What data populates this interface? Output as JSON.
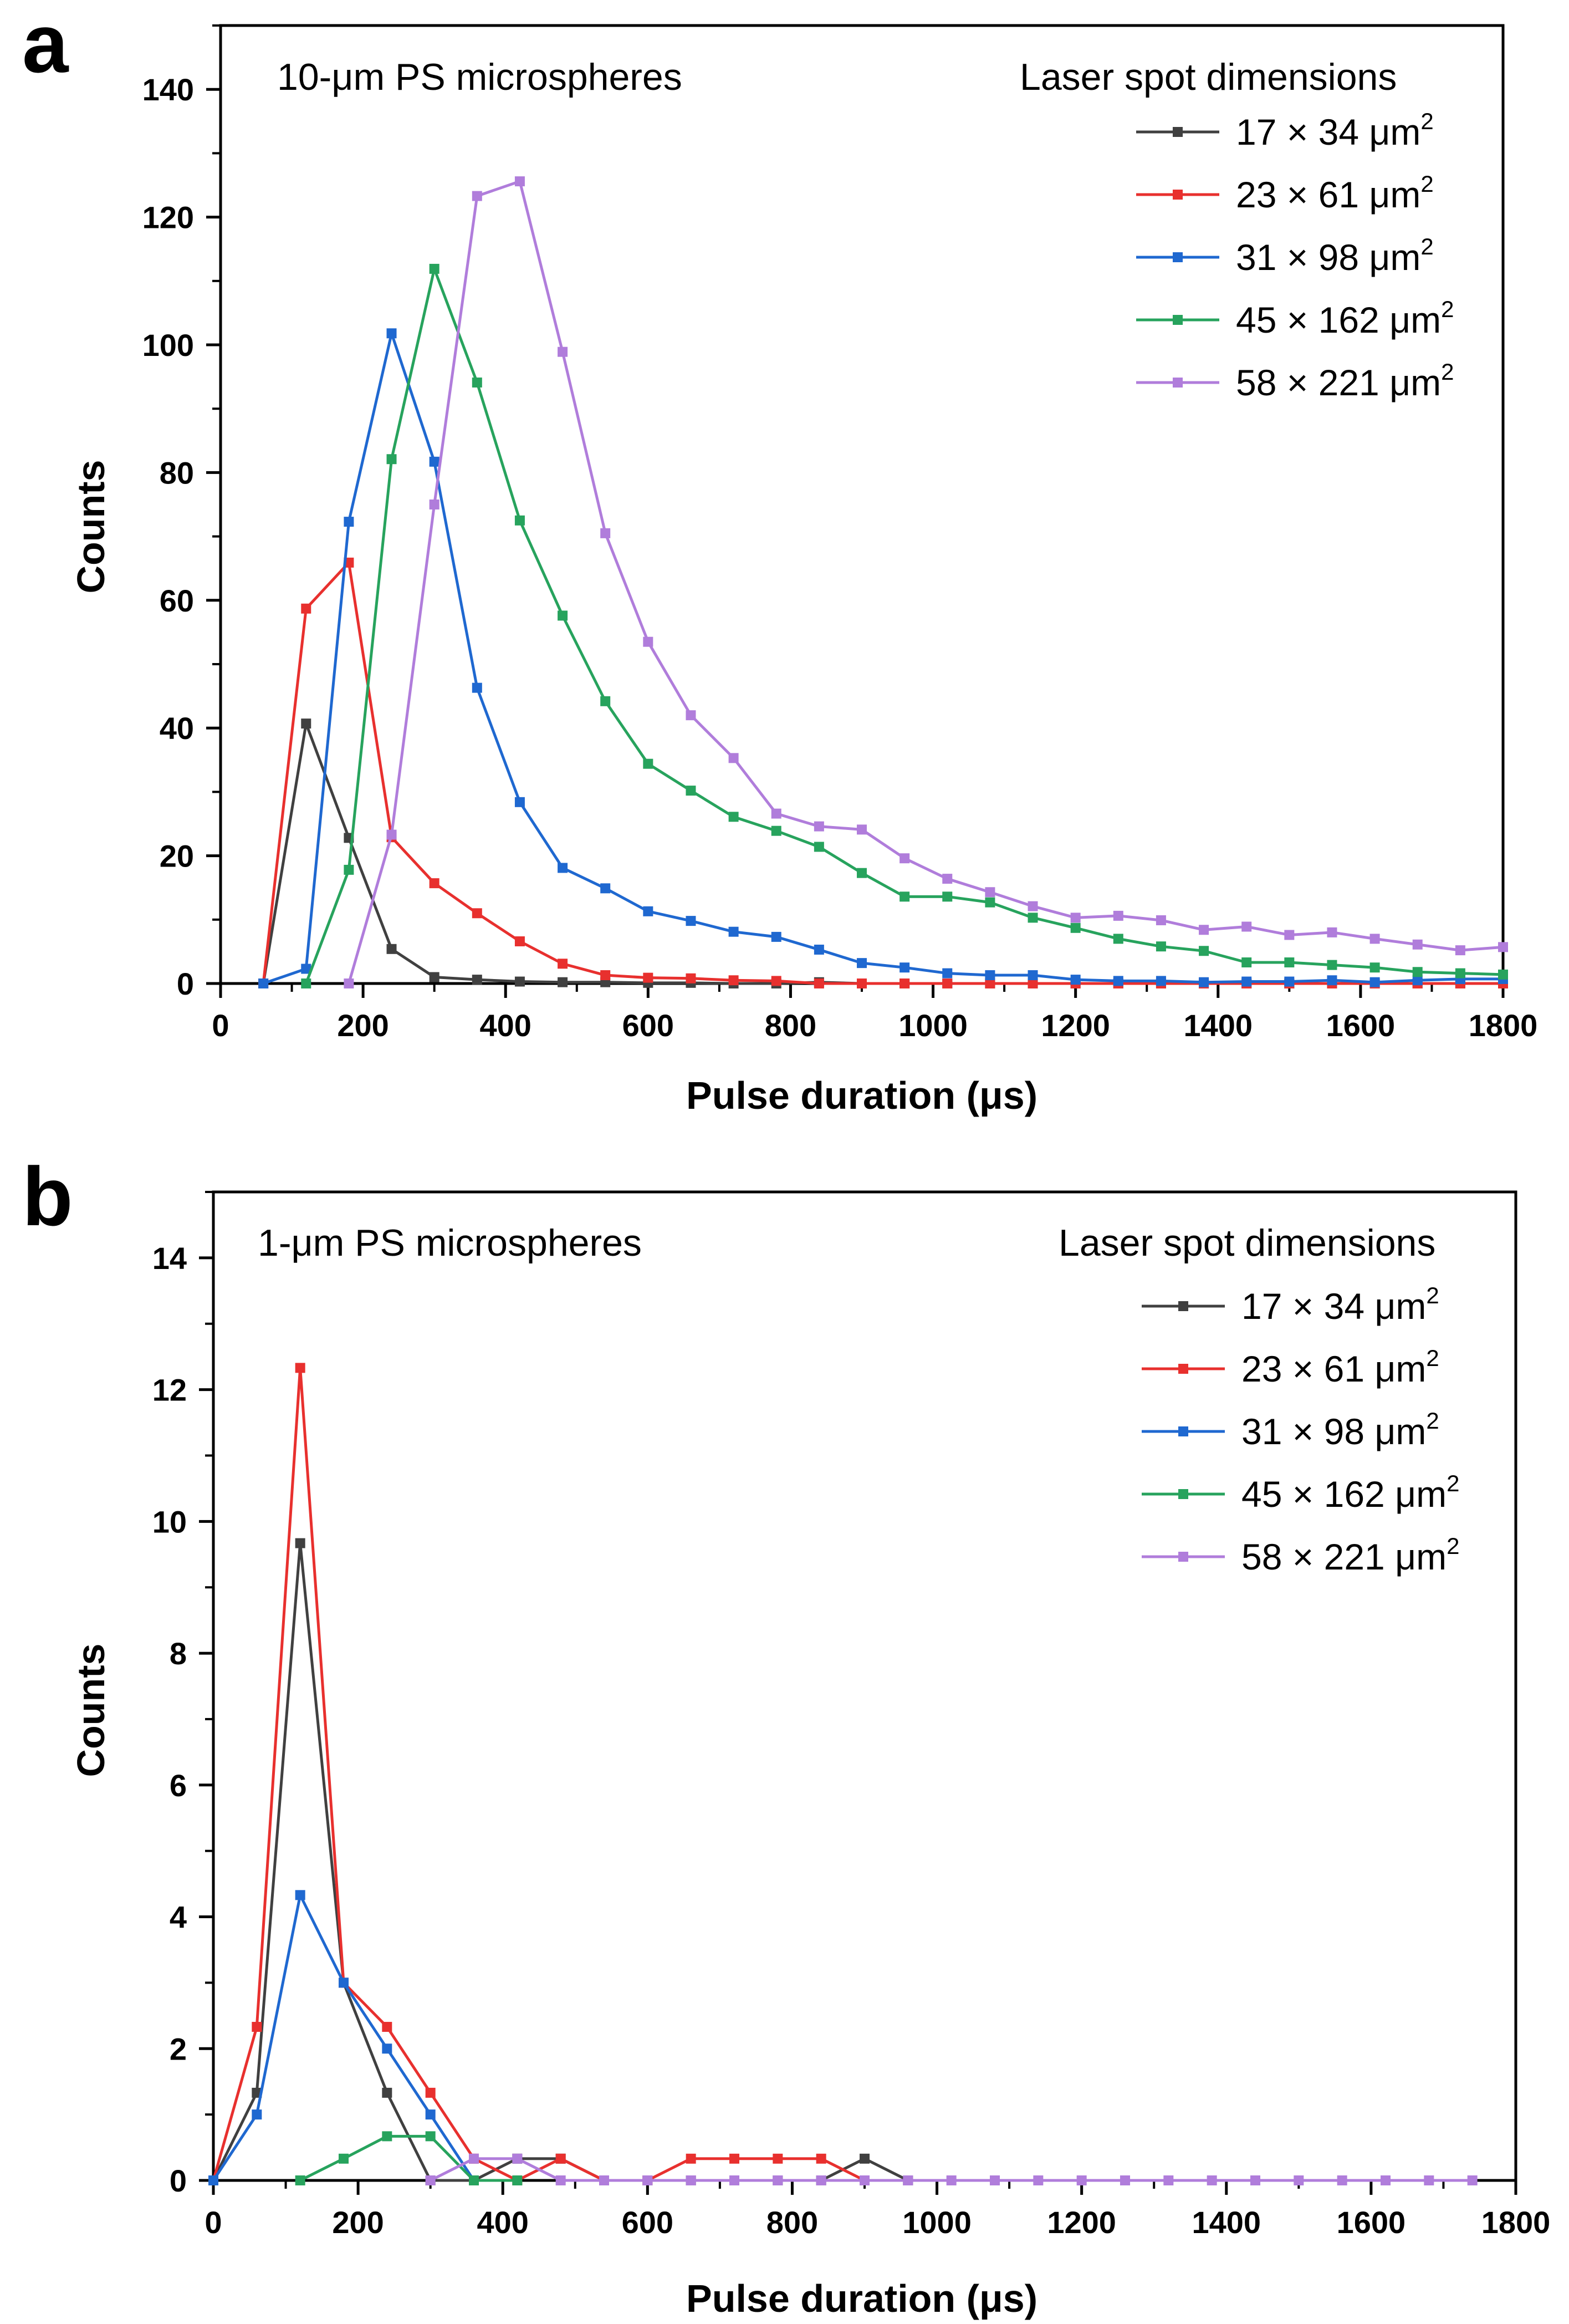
{
  "chart_data": [
    {
      "panel": "a",
      "type": "line",
      "annotation": "10-μm PS microspheres",
      "legend_title": "Laser spot dimensions",
      "legend_position": "top-right",
      "xlabel": "Pulse duration (μs)",
      "ylabel": "Counts",
      "xlim": [
        0,
        1800
      ],
      "ylim": [
        0,
        150
      ],
      "xticks": [
        0,
        200,
        400,
        600,
        800,
        1000,
        1200,
        1400,
        1600,
        1800
      ],
      "yticks": [
        0,
        20,
        40,
        60,
        80,
        100,
        120,
        140
      ],
      "series": [
        {
          "name_base": "17 × 34 μm",
          "name_sup": "2",
          "color": "#404040",
          "x": [
            60,
            120,
            180,
            240,
            300,
            360,
            420,
            480,
            540,
            600,
            660,
            720,
            780,
            840,
            900,
            960,
            1020,
            1080,
            1140,
            1200,
            1260,
            1320,
            1380,
            1440,
            1500,
            1560,
            1620,
            1680,
            1740,
            1800
          ],
          "y": [
            0,
            40.7,
            22.8,
            5.4,
            1,
            0.6,
            0.3,
            0.2,
            0.2,
            0.1,
            0.1,
            0,
            0,
            0.2,
            0,
            0,
            0,
            0,
            0,
            0,
            0,
            0,
            0,
            0,
            0,
            0,
            0,
            0,
            0,
            0
          ]
        },
        {
          "name_base": "23 × 61 μm",
          "name_sup": "2",
          "color": "#e8302e",
          "x": [
            60,
            120,
            180,
            240,
            300,
            360,
            420,
            480,
            540,
            600,
            660,
            720,
            780,
            840,
            900,
            960,
            1020,
            1080,
            1140,
            1200,
            1260,
            1320,
            1380,
            1440,
            1500,
            1560,
            1620,
            1680,
            1740,
            1800
          ],
          "y": [
            0,
            58.7,
            65.9,
            22.9,
            15.7,
            11,
            6.6,
            3.1,
            1.3,
            0.9,
            0.8,
            0.5,
            0.4,
            0,
            0,
            0,
            0,
            0,
            0,
            0,
            0,
            0,
            0,
            0,
            0,
            0,
            0,
            0,
            0,
            0
          ]
        },
        {
          "name_base": "31 × 98 μm",
          "name_sup": "2",
          "color": "#1f68d0",
          "x": [
            60,
            120,
            180,
            240,
            300,
            360,
            420,
            480,
            540,
            600,
            660,
            720,
            780,
            840,
            900,
            960,
            1020,
            1080,
            1140,
            1200,
            1260,
            1320,
            1380,
            1440,
            1500,
            1560,
            1620,
            1680,
            1740,
            1800
          ],
          "y": [
            0,
            2.3,
            72.3,
            101.8,
            81.7,
            46.3,
            28.4,
            18.1,
            14.9,
            11.3,
            9.8,
            8.1,
            7.3,
            5.3,
            3.2,
            2.5,
            1.6,
            1.3,
            1.3,
            0.6,
            0.4,
            0.4,
            0.2,
            0.3,
            0.3,
            0.5,
            0.2,
            0.5,
            0.7,
            0.7
          ]
        },
        {
          "name_base": "45 × 162 μm",
          "name_sup": "2",
          "color": "#27a35d",
          "x": [
            120,
            180,
            240,
            300,
            360,
            420,
            480,
            540,
            600,
            660,
            720,
            780,
            840,
            900,
            960,
            1020,
            1080,
            1140,
            1200,
            1260,
            1320,
            1380,
            1440,
            1500,
            1560,
            1620,
            1680,
            1740,
            1800
          ],
          "y": [
            0,
            17.8,
            82.1,
            111.9,
            94.1,
            72.5,
            57.6,
            44.2,
            34.4,
            30.2,
            26.1,
            23.9,
            21.4,
            17.3,
            13.6,
            13.6,
            12.7,
            10.3,
            8.7,
            7,
            5.8,
            5.1,
            3.3,
            3.3,
            2.9,
            2.5,
            1.8,
            1.6,
            1.4
          ]
        },
        {
          "name_base": "58 × 221 μm",
          "name_sup": "2",
          "color": "#b07ddb",
          "x": [
            180,
            240,
            300,
            360,
            420,
            480,
            540,
            600,
            660,
            720,
            780,
            840,
            900,
            960,
            1020,
            1080,
            1140,
            1200,
            1260,
            1320,
            1380,
            1440,
            1500,
            1560,
            1620,
            1680,
            1740,
            1800
          ],
          "y": [
            0,
            23.3,
            75,
            123.3,
            125.6,
            98.9,
            70.5,
            53.5,
            42,
            35.3,
            26.6,
            24.6,
            24.1,
            19.6,
            16.4,
            14.3,
            12.1,
            10.3,
            10.6,
            9.9,
            8.4,
            8.9,
            7.6,
            8,
            7,
            6.1,
            5.2,
            5.7
          ]
        }
      ]
    },
    {
      "panel": "b",
      "type": "line",
      "annotation": "1-μm PS microspheres",
      "legend_title": "Laser spot dimensions",
      "legend_position": "top-right",
      "xlabel": "Pulse duration (μs)",
      "ylabel": "Counts",
      "xlim": [
        0,
        1800
      ],
      "ylim": [
        0,
        15
      ],
      "xticks": [
        0,
        200,
        400,
        600,
        800,
        1000,
        1200,
        1400,
        1600,
        1800
      ],
      "yticks": [
        0,
        2,
        4,
        6,
        8,
        10,
        12,
        14
      ],
      "series": [
        {
          "name_base": "17 × 34 μm",
          "name_sup": "2",
          "color": "#404040",
          "x": [
            0,
            60,
            120,
            180,
            240,
            300,
            360,
            420,
            480,
            540,
            600,
            660,
            720,
            780,
            840,
            900,
            960
          ],
          "y": [
            0,
            1.33,
            9.67,
            3,
            1.33,
            0,
            0,
            0.33,
            0.33,
            0,
            0,
            0,
            0,
            0,
            0,
            0.33,
            0
          ]
        },
        {
          "name_base": "23 × 61 μm",
          "name_sup": "2",
          "color": "#e8302e",
          "x": [
            0,
            60,
            120,
            180,
            240,
            300,
            360,
            420,
            480,
            540,
            600,
            660,
            720,
            780,
            840,
            900
          ],
          "y": [
            0,
            2.33,
            12.33,
            3,
            2.33,
            1.33,
            0.33,
            0,
            0.33,
            0,
            0,
            0.33,
            0.33,
            0.33,
            0.33,
            0
          ]
        },
        {
          "name_base": "31 × 98 μm",
          "name_sup": "2",
          "color": "#1f68d0",
          "x": [
            0,
            60,
            120,
            180,
            240,
            300,
            360
          ],
          "y": [
            0,
            1,
            4.33,
            3,
            2,
            1,
            0
          ]
        },
        {
          "name_base": "45 × 162 μm",
          "name_sup": "2",
          "color": "#27a35d",
          "x": [
            120,
            180,
            240,
            300,
            360,
            420
          ],
          "y": [
            0,
            0.33,
            0.67,
            0.67,
            0,
            0
          ]
        },
        {
          "name_base": "58 × 221 μm",
          "name_sup": "2",
          "color": "#b07ddb",
          "x": [
            300,
            360,
            420,
            480,
            540,
            600,
            660,
            720,
            780,
            840,
            900,
            960,
            1020,
            1080,
            1140,
            1200,
            1260,
            1320,
            1380,
            1440,
            1500,
            1560,
            1620,
            1680,
            1740
          ],
          "y": [
            0,
            0.33,
            0.33,
            0,
            0,
            0,
            0,
            0,
            0,
            0,
            0,
            0,
            0,
            0,
            0,
            0,
            0,
            0,
            0,
            0,
            0,
            0,
            0,
            0,
            0
          ]
        }
      ]
    }
  ]
}
